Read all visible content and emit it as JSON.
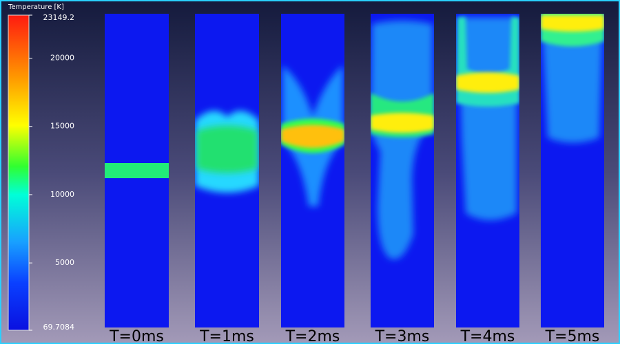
{
  "colorbar": {
    "title": "Temperature [K]",
    "ticks": [
      23149.2,
      20000,
      15000,
      10000,
      5000,
      69.7084
    ]
  },
  "panels": [
    {
      "label": "T=0ms"
    },
    {
      "label": "T=1ms"
    },
    {
      "label": "T=2ms"
    },
    {
      "label": "T=3ms"
    },
    {
      "label": "T=4ms"
    },
    {
      "label": "T=5ms"
    }
  ]
}
